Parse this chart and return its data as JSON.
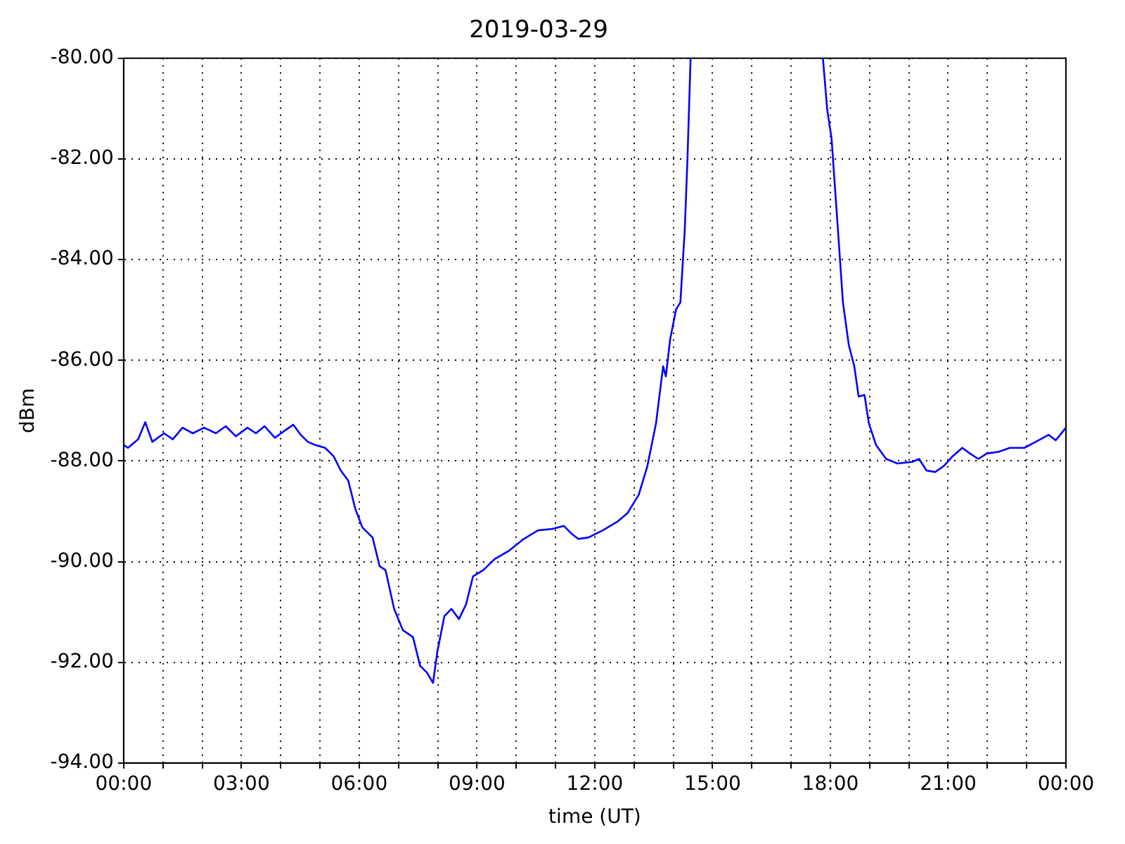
{
  "chart_data": {
    "type": "line",
    "title": "2019-03-29",
    "xlabel": "time (UT)",
    "ylabel": "dBm",
    "x": [
      0,
      0.11,
      0.37,
      0.55,
      0.73,
      1.03,
      1.25,
      1.5,
      1.76,
      2.05,
      2.35,
      2.6,
      2.86,
      3.15,
      3.37,
      3.59,
      3.85,
      4.1,
      4.32,
      4.51,
      4.69,
      4.87,
      5.13,
      5.35,
      5.53,
      5.72,
      5.9,
      6.08,
      6.34,
      6.52,
      6.67,
      6.89,
      7.11,
      7.37,
      7.55,
      7.73,
      7.88,
      7.99,
      8.17,
      8.35,
      8.54,
      8.72,
      8.9,
      9.16,
      9.45,
      9.82,
      10.19,
      10.55,
      10.92,
      11.21,
      11.4,
      11.58,
      11.84,
      12.2,
      12.57,
      12.83,
      13.12,
      13.34,
      13.56,
      13.74,
      13.81,
      13.92,
      14.07,
      14.18,
      14.29,
      14.36,
      14.44,
      16,
      17.81,
      17.92,
      18.03,
      18.17,
      18.32,
      18.47,
      18.61,
      18.72,
      18.87,
      18.98,
      19.16,
      19.42,
      19.71,
      20.08,
      20.26,
      20.45,
      20.67,
      20.89,
      21.11,
      21.36,
      21.55,
      21.77,
      21.99,
      22.28,
      22.57,
      22.94,
      23.3,
      23.56,
      23.74,
      24
    ],
    "series": [
      {
        "color": "#0000ff",
        "values": [
          -87.68,
          -87.74,
          -87.57,
          -87.23,
          -87.62,
          -87.45,
          -87.57,
          -87.34,
          -87.45,
          -87.34,
          -87.45,
          -87.31,
          -87.51,
          -87.34,
          -87.45,
          -87.31,
          -87.54,
          -87.4,
          -87.28,
          -87.48,
          -87.62,
          -87.68,
          -87.74,
          -87.91,
          -88.19,
          -88.39,
          -88.95,
          -89.32,
          -89.52,
          -90.09,
          -90.17,
          -90.94,
          -91.36,
          -91.5,
          -92.07,
          -92.21,
          -92.41,
          -91.79,
          -91.08,
          -90.94,
          -91.14,
          -90.85,
          -90.29,
          -90.17,
          -89.95,
          -89.78,
          -89.55,
          -89.38,
          -89.35,
          -89.29,
          -89.44,
          -89.55,
          -89.52,
          -89.38,
          -89.21,
          -89.04,
          -88.67,
          -88.1,
          -87.25,
          -86.12,
          -86.32,
          -85.58,
          -84.99,
          -84.85,
          -83.43,
          -82.01,
          -80,
          null,
          -80,
          -81.02,
          -81.59,
          -83.15,
          -84.85,
          -85.7,
          -86.12,
          -86.72,
          -86.69,
          -87.25,
          -87.68,
          -87.96,
          -88.05,
          -88.02,
          -87.96,
          -88.19,
          -88.22,
          -88.1,
          -87.91,
          -87.74,
          -87.85,
          -87.96,
          -87.85,
          -87.82,
          -87.74,
          -87.74,
          -87.59,
          -87.48,
          -87.59,
          -87.34
        ]
      }
    ],
    "xlim": [
      0,
      24
    ],
    "xticks": [
      {
        "value": 0,
        "label": "00:00"
      },
      {
        "value": 1,
        "label": null
      },
      {
        "value": 2,
        "label": null
      },
      {
        "value": 3,
        "label": "03:00"
      },
      {
        "value": 4,
        "label": null
      },
      {
        "value": 5,
        "label": null
      },
      {
        "value": 6,
        "label": "06:00"
      },
      {
        "value": 7,
        "label": null
      },
      {
        "value": 8,
        "label": null
      },
      {
        "value": 9,
        "label": "09:00"
      },
      {
        "value": 10,
        "label": null
      },
      {
        "value": 11,
        "label": null
      },
      {
        "value": 12,
        "label": "12:00"
      },
      {
        "value": 13,
        "label": null
      },
      {
        "value": 14,
        "label": null
      },
      {
        "value": 15,
        "label": "15:00"
      },
      {
        "value": 16,
        "label": null
      },
      {
        "value": 17,
        "label": null
      },
      {
        "value": 18,
        "label": "18:00"
      },
      {
        "value": 19,
        "label": null
      },
      {
        "value": 20,
        "label": null
      },
      {
        "value": 21,
        "label": "21:00"
      },
      {
        "value": 22,
        "label": null
      },
      {
        "value": 23,
        "label": null
      },
      {
        "value": 24,
        "label": "00:00"
      }
    ],
    "ylim": [
      -94,
      -80
    ],
    "yticks": [
      {
        "value": -94,
        "label": "-94.00"
      },
      {
        "value": -92,
        "label": "-92.00"
      },
      {
        "value": -90,
        "label": "-90.00"
      },
      {
        "value": -88,
        "label": "-88.00"
      },
      {
        "value": -86,
        "label": "-86.00"
      },
      {
        "value": -84,
        "label": "-84.00"
      },
      {
        "value": -82,
        "label": "-82.00"
      },
      {
        "value": -80,
        "label": "-80.00"
      }
    ],
    "grid": true,
    "line_style": "solid"
  }
}
